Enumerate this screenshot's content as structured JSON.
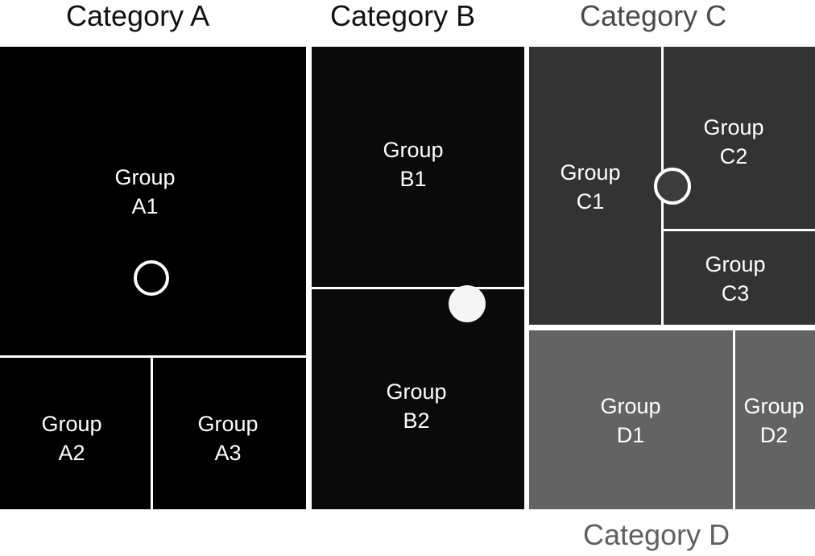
{
  "categories": {
    "a": {
      "title": "Category A",
      "color": "#000000"
    },
    "b": {
      "title": "Category B",
      "color": "#0a0a0a"
    },
    "c": {
      "title": "Category C",
      "color": "#333333"
    },
    "d": {
      "title": "Category D",
      "color": "#636363"
    }
  },
  "groups": {
    "a1": {
      "line1": "Group",
      "line2": "A1"
    },
    "a2": {
      "line1": "Group",
      "line2": "A2"
    },
    "a3": {
      "line1": "Group",
      "line2": "A3"
    },
    "b1": {
      "line1": "Group",
      "line2": "B1"
    },
    "b2": {
      "line1": "Group",
      "line2": "B2"
    },
    "c1": {
      "line1": "Group",
      "line2": "C1"
    },
    "c2": {
      "line1": "Group",
      "line2": "C2"
    },
    "c3": {
      "line1": "Group",
      "line2": "C3"
    },
    "d1": {
      "line1": "Group",
      "line2": "D1"
    },
    "d2": {
      "line1": "Group",
      "line2": "D2"
    }
  },
  "markers": {
    "a": {
      "style": "hollow",
      "color": "#ffffff"
    },
    "b": {
      "style": "filled",
      "color": "#f5f5f5"
    },
    "c": {
      "style": "filled-outlined",
      "color": "#3c3c3c",
      "outline": "#ffffff"
    }
  }
}
